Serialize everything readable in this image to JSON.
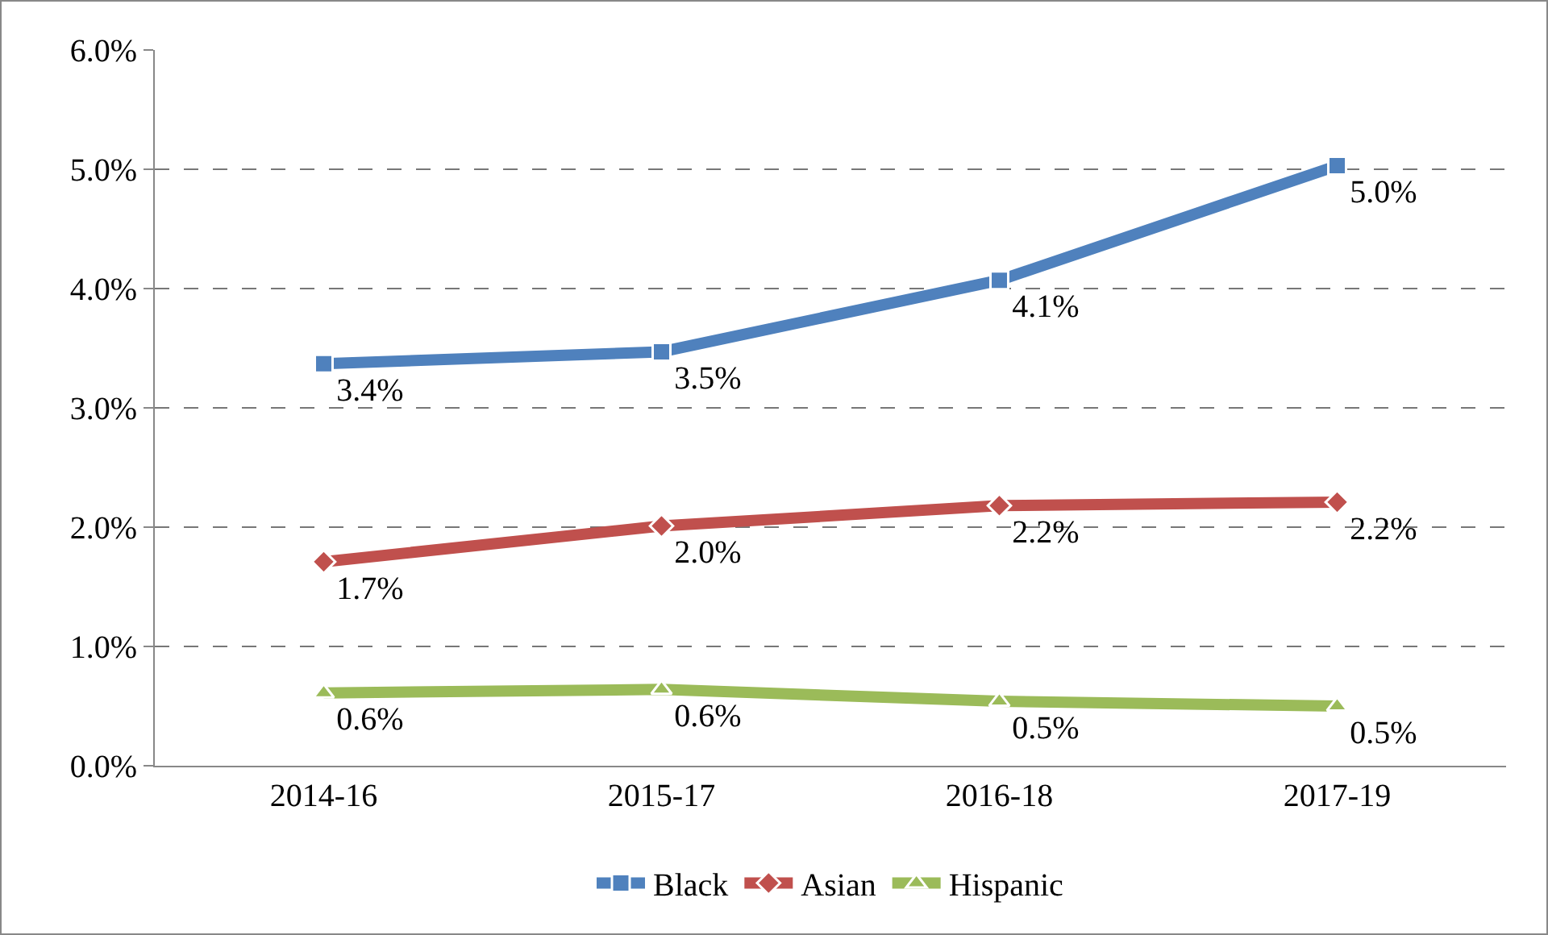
{
  "chart_data": {
    "type": "line",
    "categories": [
      "2014-16",
      "2015-17",
      "2016-18",
      "2017-19"
    ],
    "series": [
      {
        "name": "Black",
        "color": "#4f81bd",
        "marker": "square",
        "values": [
          3.37,
          3.47,
          4.07,
          5.03
        ],
        "value_labels": [
          "3.4%",
          "3.5%",
          "4.1%",
          "5.0%"
        ]
      },
      {
        "name": "Asian",
        "color": "#c0504d",
        "marker": "diamond",
        "values": [
          1.71,
          2.01,
          2.18,
          2.21
        ],
        "value_labels": [
          "1.7%",
          "2.0%",
          "2.2%",
          "2.2%"
        ]
      },
      {
        "name": "Hispanic",
        "color": "#9bbb59",
        "marker": "triangle",
        "values": [
          0.61,
          0.64,
          0.54,
          0.5
        ],
        "value_labels": [
          "0.6%",
          "0.6%",
          "0.5%",
          "0.5%"
        ]
      }
    ],
    "ylim": [
      0,
      6
    ],
    "yticks": [
      {
        "value": 0,
        "label": "0.0%"
      },
      {
        "value": 1,
        "label": "1.0%"
      },
      {
        "value": 2,
        "label": "2.0%"
      },
      {
        "value": 3,
        "label": "3.0%"
      },
      {
        "value": 4,
        "label": "4.0%"
      },
      {
        "value": 5,
        "label": "5.0%"
      },
      {
        "value": 6,
        "label": "6.0%"
      }
    ],
    "grid": "y",
    "legend": "bottom",
    "line_style": "solid"
  }
}
